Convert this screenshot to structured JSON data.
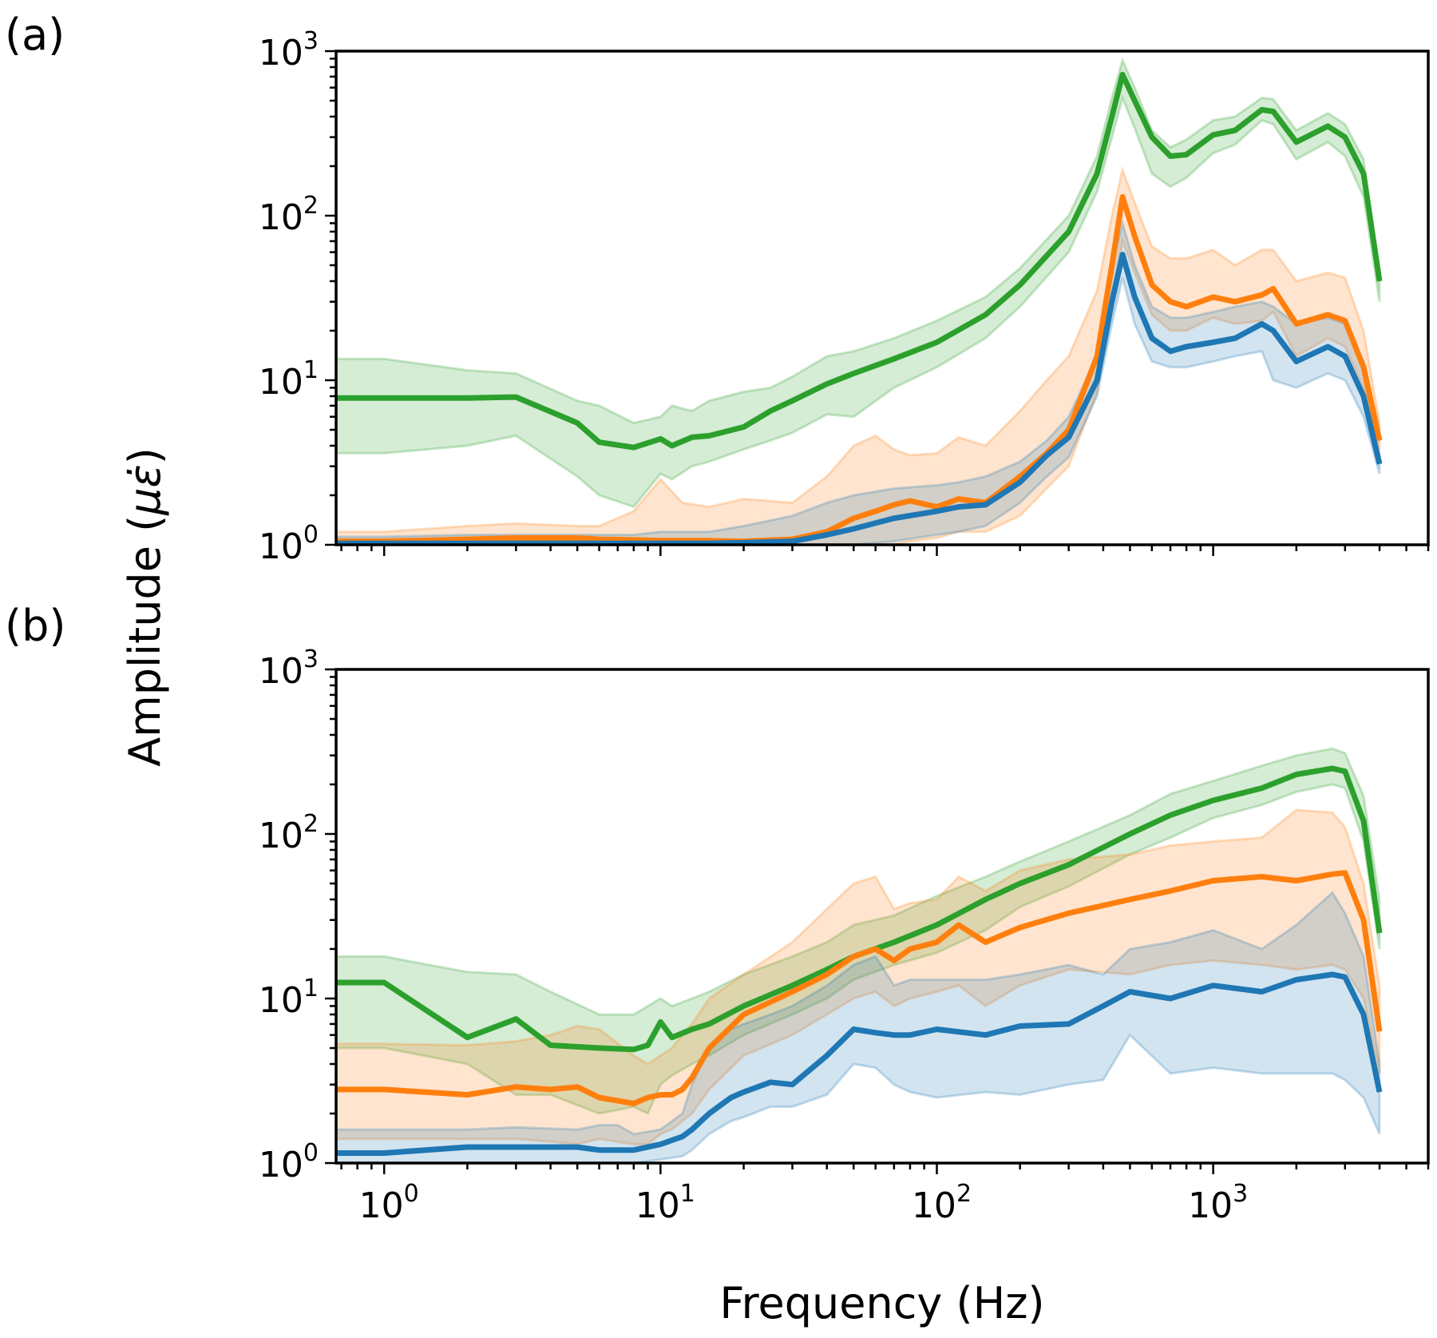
{
  "figure": {
    "xlabel": "Frequency (Hz)",
    "ylabel_prefix": "Amplitude (",
    "ylabel_symbol": "με̇",
    "ylabel_suffix": ")"
  },
  "chart_data": [
    {
      "type": "line",
      "panel_label": "(a)",
      "title": "",
      "xlabel": "",
      "ylabel": "Amplitude (με̇)",
      "xscale": "log",
      "yscale": "log",
      "xlim": [
        0.67,
        6000
      ],
      "ylim": [
        1,
        1000
      ],
      "x_tick_labels": [
        "10^0",
        "10^1",
        "10^2",
        "10^3"
      ],
      "x_ticks": [
        1,
        10,
        100,
        1000
      ],
      "y_tick_labels": [
        "10^0",
        "10^1",
        "10^2",
        "10^3"
      ],
      "y_ticks": [
        1,
        10,
        100,
        1000
      ],
      "show_x_tick_labels": false,
      "grid": false,
      "legend": "none",
      "series": [
        {
          "name": "series-green",
          "color": "#2ca02c",
          "x": [
            0.67,
            1,
            2,
            3,
            5,
            6,
            8,
            10,
            11,
            13,
            15,
            20,
            25,
            30,
            40,
            50,
            70,
            100,
            150,
            200,
            300,
            380,
            430,
            470,
            520,
            600,
            700,
            800,
            1000,
            1200,
            1500,
            1650,
            2000,
            2600,
            3000,
            3500,
            4000
          ],
          "mean": [
            7.8,
            7.8,
            7.8,
            7.9,
            5.5,
            4.2,
            3.9,
            4.4,
            4.0,
            4.5,
            4.6,
            5.2,
            6.5,
            7.5,
            9.5,
            11,
            13.5,
            17,
            25,
            38,
            80,
            180,
            400,
            720,
            500,
            300,
            230,
            235,
            310,
            330,
            440,
            430,
            280,
            350,
            300,
            180,
            40
          ],
          "lower": [
            3.6,
            3.6,
            4.0,
            4.6,
            2.6,
            2.0,
            1.7,
            2.7,
            2.5,
            3.0,
            3.2,
            3.8,
            4.3,
            4.8,
            6.2,
            6.0,
            9.0,
            12,
            18,
            28,
            60,
            140,
            300,
            520,
            340,
            180,
            150,
            170,
            240,
            270,
            380,
            360,
            220,
            280,
            230,
            130,
            30
          ],
          "upper": [
            13.5,
            13.5,
            11.5,
            11.0,
            7.5,
            7.0,
            5.5,
            6.0,
            7.0,
            6.5,
            7.5,
            8.5,
            9.0,
            10.5,
            14,
            15,
            18,
            23,
            32,
            48,
            100,
            230,
            520,
            880,
            600,
            330,
            260,
            290,
            380,
            400,
            520,
            510,
            330,
            420,
            360,
            220,
            40
          ]
        },
        {
          "name": "series-orange",
          "color": "#ff7f0e",
          "x": [
            0.67,
            1,
            2,
            3,
            5,
            6,
            8,
            10,
            12,
            15,
            20,
            30,
            40,
            50,
            60,
            70,
            80,
            100,
            120,
            150,
            200,
            250,
            300,
            380,
            430,
            470,
            520,
            600,
            700,
            800,
            1000,
            1200,
            1500,
            1650,
            2000,
            2600,
            3000,
            3500,
            4000
          ],
          "mean": [
            1.05,
            1.05,
            1.08,
            1.1,
            1.1,
            1.08,
            1.07,
            1.06,
            1.06,
            1.06,
            1.05,
            1.08,
            1.2,
            1.45,
            1.6,
            1.75,
            1.85,
            1.7,
            1.9,
            1.8,
            2.6,
            3.6,
            5.0,
            14,
            50,
            130,
            75,
            38,
            30,
            28,
            32,
            30,
            33,
            36,
            22,
            25,
            23,
            12,
            4.3
          ],
          "lower": [
            1.0,
            1.0,
            1.0,
            1.0,
            1.0,
            1.0,
            1.0,
            1.0,
            1.0,
            1.0,
            1.0,
            1.0,
            1.0,
            1.0,
            1.0,
            1.0,
            1.05,
            1.1,
            1.2,
            1.2,
            1.5,
            2.2,
            3.0,
            8.5,
            30,
            70,
            45,
            25,
            20,
            20,
            24,
            22,
            23,
            26,
            14,
            18,
            16,
            9,
            3.8
          ],
          "upper": [
            1.2,
            1.2,
            1.3,
            1.35,
            1.3,
            1.3,
            1.6,
            2.5,
            1.8,
            1.7,
            1.9,
            1.8,
            2.6,
            4.0,
            4.6,
            3.8,
            3.5,
            3.6,
            4.5,
            4.0,
            6.5,
            10,
            14,
            35,
            100,
            190,
            120,
            65,
            55,
            55,
            62,
            50,
            62,
            62,
            40,
            45,
            42,
            20,
            5.5
          ]
        },
        {
          "name": "series-blue",
          "color": "#1f77b4",
          "x": [
            0.67,
            1,
            2,
            3,
            5,
            8,
            10,
            15,
            20,
            30,
            40,
            50,
            70,
            100,
            120,
            150,
            200,
            250,
            300,
            380,
            430,
            470,
            520,
            600,
            700,
            800,
            1000,
            1200,
            1500,
            1650,
            2000,
            2600,
            3000,
            3500,
            4000
          ],
          "mean": [
            1.02,
            1.02,
            1.02,
            1.02,
            1.02,
            1.02,
            1.02,
            1.02,
            1.03,
            1.05,
            1.15,
            1.25,
            1.45,
            1.6,
            1.7,
            1.75,
            2.4,
            3.5,
            4.5,
            10,
            30,
            58,
            32,
            18,
            15,
            16,
            17,
            18,
            22,
            20,
            13,
            16,
            14,
            8,
            3.1
          ],
          "lower": [
            1.0,
            1.0,
            1.0,
            1.0,
            1.0,
            1.0,
            1.0,
            1.0,
            1.0,
            1.0,
            1.0,
            1.0,
            1.05,
            1.15,
            1.2,
            1.3,
            1.8,
            2.6,
            3.4,
            8,
            22,
            42,
            22,
            13,
            12,
            12,
            13,
            14,
            15,
            10,
            9,
            11,
            10,
            6,
            2.7
          ],
          "upper": [
            1.12,
            1.12,
            1.15,
            1.15,
            1.15,
            1.15,
            1.2,
            1.2,
            1.3,
            1.5,
            1.8,
            2.0,
            2.2,
            2.3,
            2.4,
            2.6,
            3.2,
            4.3,
            6.0,
            14,
            50,
            90,
            50,
            28,
            24,
            24,
            26,
            28,
            30,
            28,
            22,
            24,
            22,
            13,
            3.5
          ]
        }
      ]
    },
    {
      "type": "line",
      "panel_label": "(b)",
      "title": "",
      "xlabel": "Frequency (Hz)",
      "ylabel": "Amplitude (με̇)",
      "xscale": "log",
      "yscale": "log",
      "xlim": [
        0.67,
        6000
      ],
      "ylim": [
        1,
        1000
      ],
      "x_tick_labels": [
        "10^0",
        "10^1",
        "10^2",
        "10^3"
      ],
      "x_ticks": [
        1,
        10,
        100,
        1000
      ],
      "y_tick_labels": [
        "10^0",
        "10^1",
        "10^2",
        "10^3"
      ],
      "y_ticks": [
        1,
        10,
        100,
        1000
      ],
      "show_x_tick_labels": true,
      "grid": false,
      "legend": "none",
      "series": [
        {
          "name": "series-green",
          "color": "#2ca02c",
          "x": [
            0.67,
            1,
            2,
            3,
            4,
            6,
            8,
            9,
            10,
            11,
            13,
            15,
            20,
            30,
            40,
            50,
            70,
            100,
            150,
            200,
            300,
            500,
            700,
            1000,
            1500,
            2000,
            2700,
            3000,
            3500,
            4000
          ],
          "mean": [
            12.5,
            12.5,
            5.8,
            7.5,
            5.2,
            5.0,
            4.9,
            5.2,
            7.2,
            5.8,
            6.5,
            7.0,
            9.0,
            12,
            15,
            18,
            22,
            28,
            40,
            50,
            65,
            100,
            130,
            160,
            190,
            230,
            250,
            240,
            120,
            25
          ],
          "lower": [
            5.0,
            5.0,
            4.0,
            2.6,
            2.6,
            2.0,
            2.2,
            2.0,
            3.0,
            3.4,
            4.0,
            4.5,
            6.0,
            8.0,
            10,
            13,
            16,
            19,
            26,
            36,
            48,
            75,
            95,
            125,
            150,
            180,
            200,
            190,
            90,
            20
          ],
          "upper": [
            18,
            18,
            14.5,
            14,
            11,
            8.0,
            8.0,
            9.0,
            10,
            9.0,
            10,
            11,
            14,
            18,
            22,
            28,
            32,
            42,
            55,
            68,
            90,
            130,
            175,
            210,
            260,
            300,
            330,
            310,
            170,
            40
          ]
        },
        {
          "name": "series-orange",
          "color": "#ff7f0e",
          "x": [
            0.67,
            1,
            2,
            3,
            4,
            5,
            6,
            8,
            9,
            10,
            11,
            12,
            13,
            15,
            20,
            30,
            40,
            50,
            60,
            70,
            80,
            100,
            120,
            150,
            200,
            300,
            500,
            700,
            1000,
            1500,
            2000,
            2700,
            3000,
            3500,
            4000
          ],
          "mean": [
            2.8,
            2.8,
            2.6,
            2.9,
            2.8,
            2.9,
            2.5,
            2.3,
            2.5,
            2.6,
            2.6,
            2.8,
            3.3,
            5.0,
            8.0,
            11,
            14,
            18,
            20,
            17,
            20,
            22,
            28,
            22,
            27,
            33,
            40,
            45,
            52,
            55,
            52,
            57,
            58,
            30,
            6.3
          ],
          "lower": [
            1.4,
            1.4,
            1.4,
            1.4,
            1.35,
            1.3,
            1.4,
            1.3,
            1.3,
            1.5,
            1.6,
            1.8,
            2.0,
            2.8,
            4.5,
            6.0,
            8.0,
            10,
            11,
            9.0,
            10,
            11,
            12,
            9.0,
            12,
            15,
            14,
            16,
            17,
            16,
            15,
            16,
            15,
            10,
            3.5
          ],
          "upper": [
            5.3,
            5.3,
            5.2,
            5.5,
            6.0,
            6.8,
            6.5,
            4.5,
            4.0,
            4.5,
            5.0,
            6.0,
            7.0,
            10,
            14,
            22,
            35,
            50,
            55,
            35,
            38,
            40,
            55,
            45,
            60,
            70,
            75,
            85,
            90,
            95,
            140,
            135,
            110,
            50,
            12
          ]
        },
        {
          "name": "series-blue",
          "color": "#1f77b4",
          "x": [
            0.67,
            1,
            2,
            3,
            5,
            6,
            7,
            8,
            10,
            12,
            13,
            15,
            18,
            20,
            25,
            30,
            40,
            50,
            60,
            70,
            80,
            100,
            150,
            200,
            300,
            400,
            500,
            700,
            1000,
            1500,
            2000,
            2700,
            3000,
            3500,
            4000
          ],
          "mean": [
            1.15,
            1.15,
            1.25,
            1.25,
            1.25,
            1.2,
            1.2,
            1.2,
            1.3,
            1.45,
            1.6,
            2.0,
            2.5,
            2.7,
            3.1,
            3.0,
            4.5,
            6.5,
            6.2,
            6.0,
            6.0,
            6.5,
            6.0,
            6.8,
            7.0,
            9.0,
            11,
            10,
            12,
            11,
            13,
            14,
            13.5,
            8.0,
            2.7
          ],
          "lower": [
            1.0,
            1.0,
            1.0,
            1.0,
            1.0,
            1.0,
            1.0,
            1.0,
            1.05,
            1.1,
            1.2,
            1.5,
            1.8,
            1.9,
            2.2,
            2.2,
            2.6,
            4.0,
            3.8,
            3.0,
            2.7,
            2.5,
            2.7,
            2.6,
            3.0,
            3.2,
            6.0,
            3.5,
            3.8,
            3.5,
            3.5,
            3.5,
            3.2,
            2.5,
            1.5
          ],
          "upper": [
            1.6,
            1.6,
            1.6,
            1.65,
            1.6,
            1.7,
            1.7,
            1.5,
            1.6,
            2.0,
            3.0,
            5.0,
            6.5,
            7.0,
            8.0,
            9.0,
            12,
            16,
            18,
            12,
            13,
            13,
            13,
            14,
            16,
            14,
            20,
            22,
            26,
            20,
            28,
            44,
            33,
            18,
            4.0
          ]
        }
      ]
    }
  ]
}
